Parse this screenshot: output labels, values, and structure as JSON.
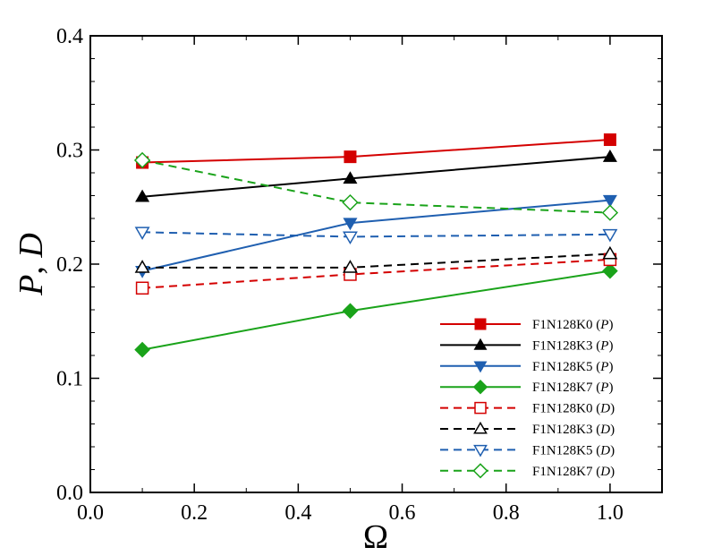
{
  "chart_data": {
    "type": "line",
    "title": "",
    "xlabel": "Ω",
    "ylabel_parts": [
      "P",
      ", ",
      "D"
    ],
    "xlim": [
      0,
      1.1
    ],
    "ylim": [
      0,
      0.4
    ],
    "xticks": [
      0.0,
      0.2,
      0.4,
      0.6,
      0.8,
      1.0
    ],
    "yticks": [
      0.0,
      0.1,
      0.2,
      0.3,
      0.4
    ],
    "xtick_labels": [
      "0.0",
      "0.2",
      "0.4",
      "0.6",
      "0.8",
      "1.0"
    ],
    "ytick_labels": [
      "0.0",
      "0.1",
      "0.2",
      "0.3",
      "0.4"
    ],
    "grid": false,
    "legend_position": "bottom-right",
    "x": [
      0.1,
      0.5,
      1.0
    ],
    "series": [
      {
        "name": "F1N128K0",
        "qualifier": "P",
        "values": [
          0.289,
          0.294,
          0.309
        ],
        "color": "#d40000",
        "dash": "solid",
        "marker": "square",
        "filled": true
      },
      {
        "name": "F1N128K3",
        "qualifier": "P",
        "values": [
          0.259,
          0.275,
          0.294
        ],
        "color": "#000000",
        "dash": "solid",
        "marker": "triangle-up",
        "filled": true
      },
      {
        "name": "F1N128K5",
        "qualifier": "P",
        "values": [
          0.194,
          0.236,
          0.256
        ],
        "color": "#1f5fb0",
        "dash": "solid",
        "marker": "triangle-down",
        "filled": true
      },
      {
        "name": "F1N128K7",
        "qualifier": "P",
        "values": [
          0.125,
          0.159,
          0.194
        ],
        "color": "#1aa31a",
        "dash": "solid",
        "marker": "diamond",
        "filled": true
      },
      {
        "name": "F1N128K0",
        "qualifier": "D",
        "values": [
          0.179,
          0.191,
          0.204
        ],
        "color": "#d40000",
        "dash": "dashed",
        "marker": "square",
        "filled": false
      },
      {
        "name": "F1N128K3",
        "qualifier": "D",
        "values": [
          0.197,
          0.197,
          0.209
        ],
        "color": "#000000",
        "dash": "dashed",
        "marker": "triangle-up",
        "filled": false
      },
      {
        "name": "F1N128K5",
        "qualifier": "D",
        "values": [
          0.228,
          0.224,
          0.226
        ],
        "color": "#1f5fb0",
        "dash": "dashed",
        "marker": "triangle-down",
        "filled": false
      },
      {
        "name": "F1N128K7",
        "qualifier": "D",
        "values": [
          0.291,
          0.254,
          0.245
        ],
        "color": "#1aa31a",
        "dash": "dashed",
        "marker": "diamond",
        "filled": false
      }
    ]
  }
}
